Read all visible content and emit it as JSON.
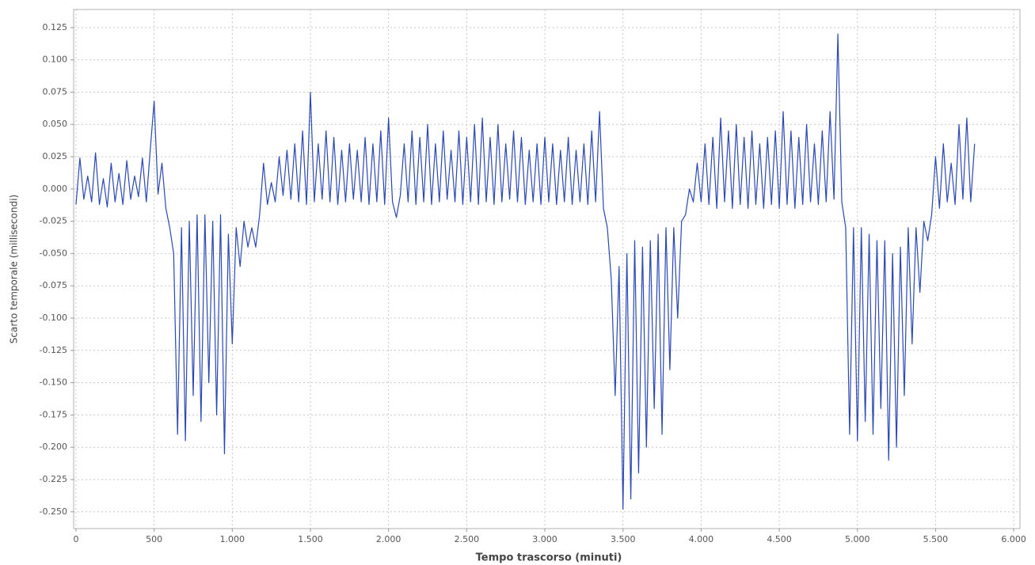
{
  "chart_data": {
    "type": "line",
    "x_label": "Tempo trascorso (minuti)",
    "y_label": "Scarto temporale (millisecondi)",
    "color": "#2b47b3",
    "grid": true,
    "xlim": [
      -15,
      6040
    ],
    "ylim": [
      -0.263,
      0.139
    ],
    "xticks": [
      0,
      500,
      {
        "value": 1000,
        "label": "1.000"
      },
      {
        "value": 1500,
        "label": "1.500"
      },
      {
        "value": 2000,
        "label": "2.000"
      },
      {
        "value": 2500,
        "label": "2.500"
      },
      {
        "value": 3000,
        "label": "3.000"
      },
      {
        "value": 3500,
        "label": "3.500"
      },
      {
        "value": 4000,
        "label": "4.000"
      },
      {
        "value": 4500,
        "label": "4.500"
      },
      {
        "value": 5000,
        "label": "5.000"
      },
      {
        "value": 5500,
        "label": "5.500"
      },
      {
        "value": 6000,
        "label": "6.000"
      }
    ],
    "yticks": [
      0.125,
      {
        "value": 0.1,
        "label": "0.100"
      },
      0.075,
      {
        "value": 0.05,
        "label": "0.050"
      },
      0.025,
      {
        "value": 0,
        "label": "0.000"
      },
      -0.025,
      {
        "value": -0.05,
        "label": "-0.050"
      },
      -0.075,
      {
        "value": -0.1,
        "label": "-0.100"
      },
      -0.125,
      {
        "value": -0.15,
        "label": "-0.150"
      },
      -0.175,
      {
        "value": -0.2,
        "label": "-0.200"
      },
      -0.225,
      {
        "value": -0.25,
        "label": "-0.250"
      }
    ],
    "x": [
      0,
      25,
      50,
      75,
      100,
      125,
      150,
      175,
      200,
      225,
      250,
      275,
      300,
      325,
      350,
      375,
      400,
      425,
      450,
      475,
      500,
      525,
      550,
      575,
      600,
      625,
      650,
      675,
      700,
      725,
      750,
      775,
      800,
      825,
      850,
      875,
      900,
      925,
      950,
      975,
      1000,
      1025,
      1050,
      1075,
      1100,
      1125,
      1150,
      1175,
      1200,
      1225,
      1250,
      1275,
      1300,
      1325,
      1350,
      1375,
      1400,
      1425,
      1450,
      1475,
      1500,
      1525,
      1550,
      1575,
      1600,
      1625,
      1650,
      1675,
      1700,
      1725,
      1750,
      1775,
      1800,
      1825,
      1850,
      1875,
      1900,
      1925,
      1950,
      1975,
      2000,
      2025,
      2050,
      2075,
      2100,
      2125,
      2150,
      2175,
      2200,
      2225,
      2250,
      2275,
      2300,
      2325,
      2350,
      2375,
      2400,
      2425,
      2450,
      2475,
      2500,
      2525,
      2550,
      2575,
      2600,
      2625,
      2650,
      2675,
      2700,
      2725,
      2750,
      2775,
      2800,
      2825,
      2850,
      2875,
      2900,
      2925,
      2950,
      2975,
      3000,
      3025,
      3050,
      3075,
      3100,
      3125,
      3150,
      3175,
      3200,
      3225,
      3250,
      3275,
      3300,
      3325,
      3350,
      3375,
      3400,
      3425,
      3450,
      3475,
      3500,
      3525,
      3550,
      3575,
      3600,
      3625,
      3650,
      3675,
      3700,
      3725,
      3750,
      3775,
      3800,
      3825,
      3850,
      3875,
      3900,
      3925,
      3950,
      3975,
      4000,
      4025,
      4050,
      4075,
      4100,
      4125,
      4150,
      4175,
      4200,
      4225,
      4250,
      4275,
      4300,
      4325,
      4350,
      4375,
      4400,
      4425,
      4450,
      4475,
      4500,
      4525,
      4550,
      4575,
      4600,
      4625,
      4650,
      4675,
      4700,
      4725,
      4750,
      4775,
      4800,
      4825,
      4850,
      4875,
      4900,
      4925,
      4950,
      4975,
      5000,
      5025,
      5050,
      5075,
      5100,
      5125,
      5150,
      5175,
      5200,
      5225,
      5250,
      5275,
      5300,
      5325,
      5350,
      5375,
      5400,
      5425,
      5450,
      5475,
      5500,
      5525,
      5550,
      5575,
      5600,
      5625,
      5650,
      5675,
      5700,
      5725,
      5750
    ],
    "values": [
      -0.012,
      0.024,
      -0.008,
      0.01,
      -0.01,
      0.028,
      -0.012,
      0.008,
      -0.014,
      0.02,
      -0.01,
      0.012,
      -0.012,
      0.022,
      -0.008,
      0.01,
      -0.006,
      0.024,
      -0.01,
      0.03,
      0.068,
      -0.004,
      0.02,
      -0.015,
      -0.03,
      -0.05,
      -0.19,
      -0.03,
      -0.195,
      -0.025,
      -0.16,
      -0.02,
      -0.18,
      -0.02,
      -0.15,
      -0.025,
      -0.175,
      -0.02,
      -0.205,
      -0.035,
      -0.12,
      -0.03,
      -0.06,
      -0.025,
      -0.045,
      -0.03,
      -0.045,
      -0.02,
      0.02,
      -0.012,
      0.005,
      -0.01,
      0.025,
      -0.005,
      0.03,
      -0.008,
      0.035,
      -0.01,
      0.045,
      -0.012,
      0.075,
      -0.01,
      0.035,
      -0.008,
      0.045,
      -0.01,
      0.04,
      -0.012,
      0.03,
      -0.01,
      0.035,
      -0.008,
      0.03,
      -0.01,
      0.04,
      -0.012,
      0.035,
      -0.01,
      0.045,
      -0.012,
      0.055,
      -0.01,
      -0.022,
      -0.005,
      0.035,
      -0.01,
      0.045,
      -0.012,
      0.04,
      -0.01,
      0.05,
      -0.012,
      0.035,
      -0.01,
      0.045,
      -0.008,
      0.03,
      -0.01,
      0.045,
      -0.012,
      0.04,
      -0.01,
      0.05,
      -0.012,
      0.055,
      -0.01,
      0.04,
      -0.012,
      0.05,
      -0.01,
      0.035,
      -0.008,
      0.045,
      -0.01,
      0.04,
      -0.012,
      0.03,
      -0.01,
      0.035,
      -0.012,
      0.04,
      -0.01,
      0.035,
      -0.012,
      0.03,
      -0.01,
      0.04,
      -0.012,
      0.03,
      -0.01,
      0.035,
      -0.012,
      0.045,
      -0.01,
      0.06,
      -0.015,
      -0.03,
      -0.07,
      -0.16,
      -0.06,
      -0.248,
      -0.05,
      -0.24,
      -0.04,
      -0.22,
      -0.045,
      -0.2,
      -0.04,
      -0.17,
      -0.035,
      -0.19,
      -0.03,
      -0.14,
      -0.03,
      -0.1,
      -0.025,
      -0.02,
      0.0,
      -0.01,
      0.02,
      -0.01,
      0.035,
      -0.012,
      0.04,
      -0.015,
      0.055,
      -0.01,
      0.045,
      -0.015,
      0.05,
      -0.012,
      0.04,
      -0.015,
      0.045,
      -0.012,
      0.035,
      -0.015,
      0.04,
      -0.012,
      0.045,
      -0.015,
      0.06,
      -0.012,
      0.045,
      -0.015,
      0.04,
      -0.012,
      0.05,
      -0.01,
      0.035,
      -0.012,
      0.045,
      -0.01,
      0.06,
      -0.008,
      0.12,
      -0.01,
      -0.03,
      -0.19,
      -0.03,
      -0.195,
      -0.03,
      -0.18,
      -0.035,
      -0.19,
      -0.04,
      -0.17,
      -0.04,
      -0.21,
      -0.05,
      -0.2,
      -0.045,
      -0.16,
      -0.03,
      -0.12,
      -0.03,
      -0.08,
      -0.025,
      -0.04,
      -0.02,
      0.025,
      -0.015,
      0.035,
      -0.01,
      0.02,
      -0.012,
      0.05,
      -0.008,
      0.055,
      -0.01,
      0.035
    ]
  }
}
